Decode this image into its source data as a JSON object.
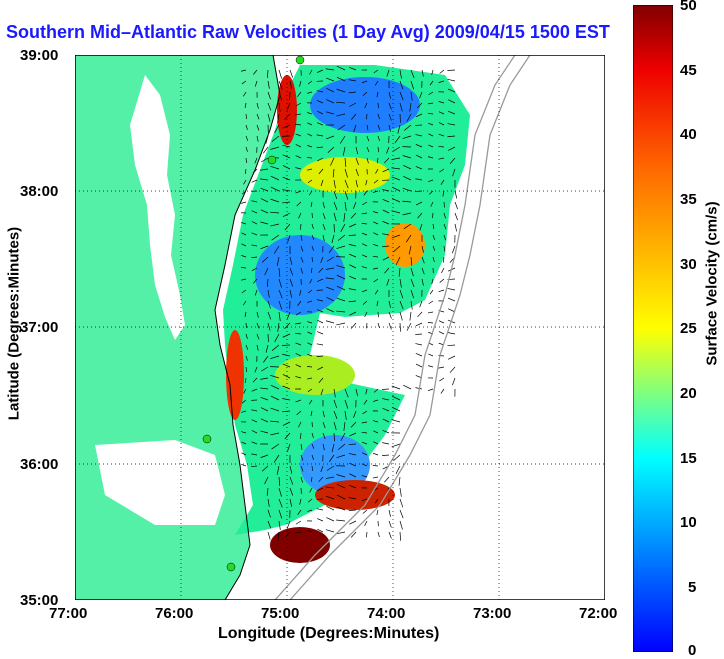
{
  "title": "Southern Mid–Atlantic Raw Velocities (1 Day Avg) 2009/04/15 1500 EST",
  "xlabel": "Longitude (Degrees:Minutes)",
  "ylabel": "Latitude (Degrees:Minutes)",
  "colorbar": {
    "label": "Surface Velocity (cm/s)",
    "ticks": [
      "50",
      "45",
      "40",
      "35",
      "30",
      "25",
      "20",
      "15",
      "10",
      "5",
      "0"
    ],
    "range": [
      0,
      50
    ]
  },
  "x_ticks": [
    "77:00",
    "76:00",
    "75:00",
    "74:00",
    "73:00",
    "72:00"
  ],
  "y_ticks": [
    "39:00",
    "38:00",
    "37:00",
    "36:00",
    "35:00"
  ],
  "colors": {
    "land": "#55f0a8",
    "water": "#ffffff",
    "title": "#1a1aff",
    "station": "#22dd22"
  },
  "chart_data": {
    "type": "heatmap",
    "title": "Southern Mid–Atlantic Raw Velocities (1 Day Avg) 2009/04/15 1500 EST",
    "xlabel": "Longitude (Degrees:Minutes)",
    "ylabel": "Latitude (Degrees:Minutes)",
    "xlim": [
      -77,
      -72
    ],
    "ylim": [
      35,
      39
    ],
    "colorbar_range": [
      0,
      50
    ],
    "colorbar_label": "Surface Velocity (cm/s)",
    "grid": true
  }
}
